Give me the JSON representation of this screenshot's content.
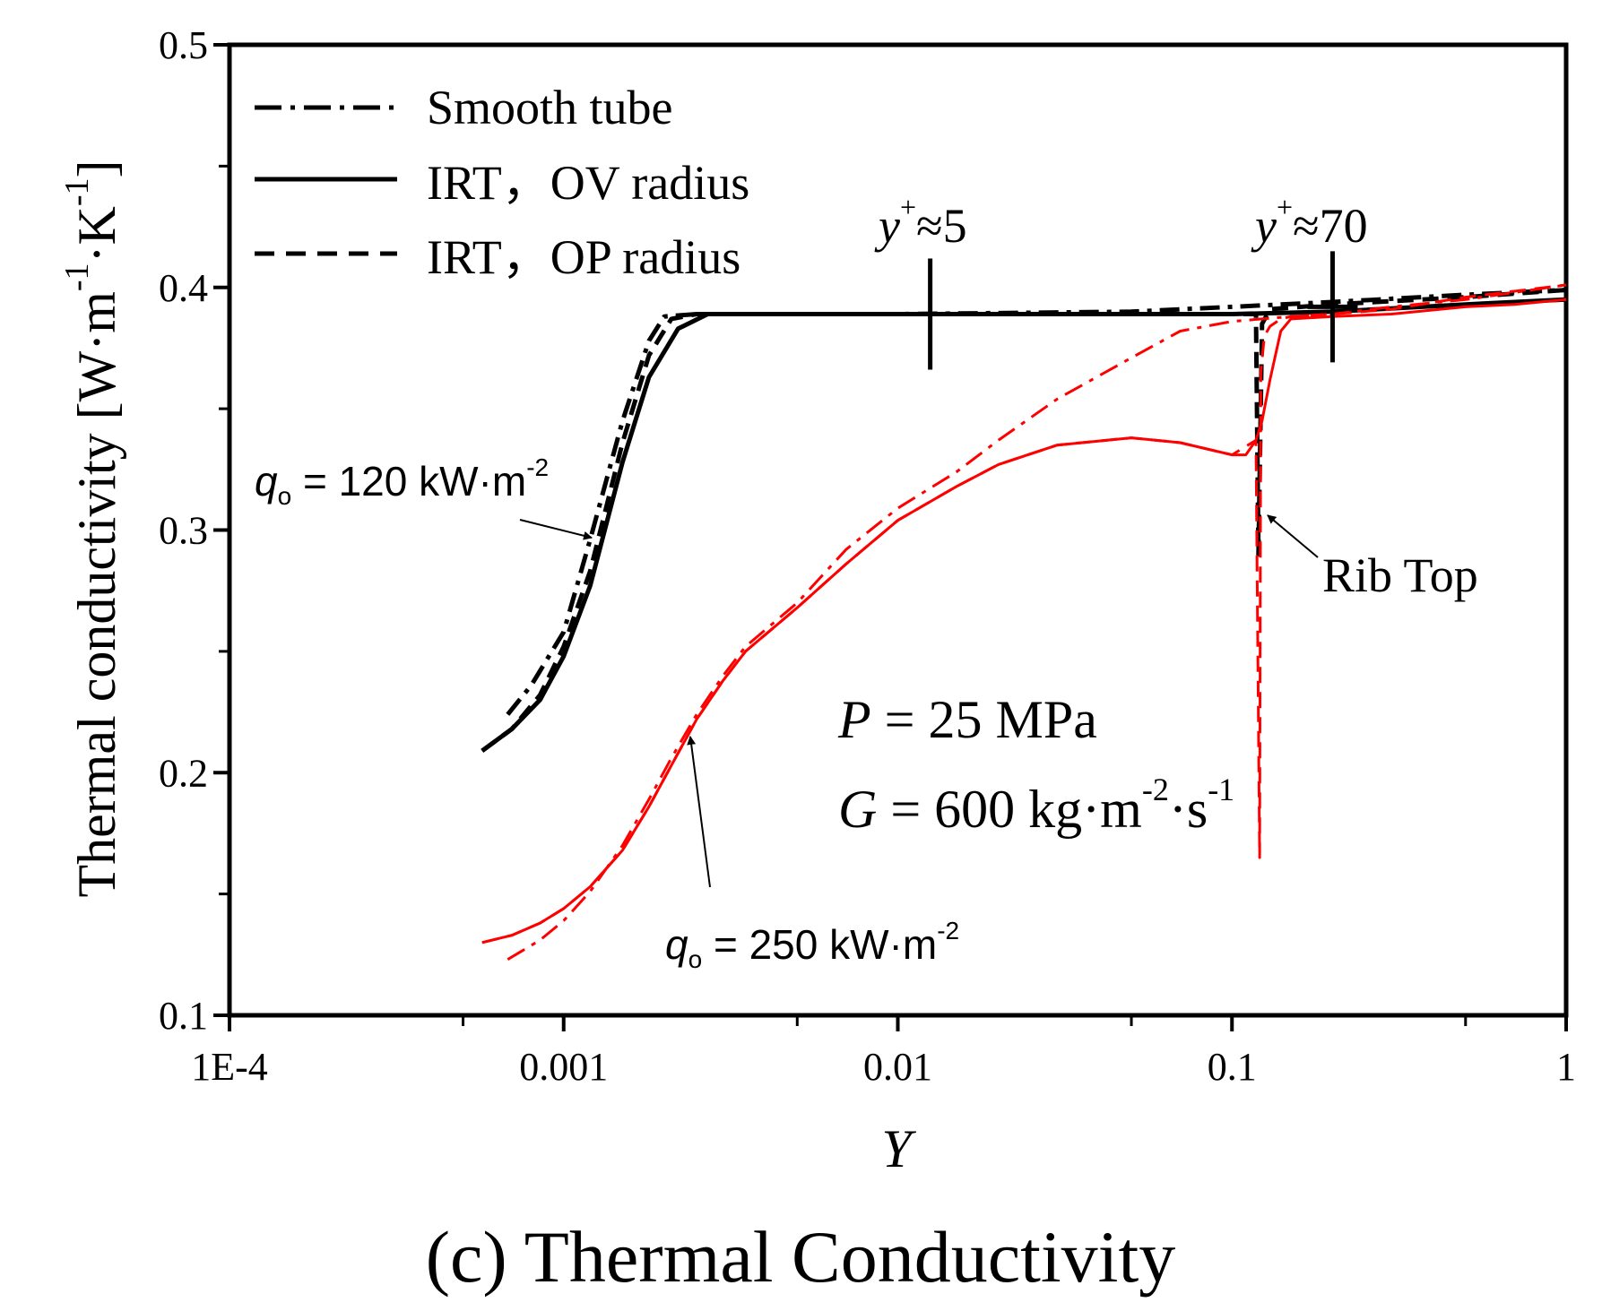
{
  "chart_data": {
    "type": "line",
    "title": "",
    "caption": {
      "label": "(c)",
      "text": "Thermal Conductivity"
    },
    "xlabel": "Y",
    "ylabel": {
      "main": "Thermal conductivity [W·m",
      "exp1": "-1",
      "mid": "·K",
      "exp2": "-1",
      "close": "]"
    },
    "xscale": "log",
    "xlim": [
      0.0001,
      1
    ],
    "ylim": [
      0.1,
      0.5
    ],
    "xticks": [
      {
        "value": 0.0001,
        "label": "1E-4"
      },
      {
        "value": 0.001,
        "label": "0.001"
      },
      {
        "value": 0.01,
        "label": "0.01"
      },
      {
        "value": 0.1,
        "label": "0.1"
      },
      {
        "value": 1,
        "label": "1"
      }
    ],
    "yticks": [
      {
        "value": 0.1,
        "label": "0.1"
      },
      {
        "value": 0.2,
        "label": "0.2"
      },
      {
        "value": 0.3,
        "label": "0.3"
      },
      {
        "value": 0.4,
        "label": "0.4"
      },
      {
        "value": 0.5,
        "label": "0.5"
      }
    ],
    "legend": {
      "position": "top-left",
      "entries": [
        {
          "label": "Smooth tube",
          "style": "dashdot"
        },
        {
          "label": "IRT，OV radius",
          "style": "solid"
        },
        {
          "label": "IRT，OP radius",
          "style": "dashed"
        }
      ]
    },
    "colors": {
      "q120": "#000000",
      "q250": "#ff0000"
    },
    "series": [
      {
        "group": "q120",
        "style": "solid",
        "x": [
          0.00057,
          0.0007,
          0.00085,
          0.001,
          0.0012,
          0.0015,
          0.0018,
          0.0022,
          0.0027,
          0.005,
          0.01,
          0.05,
          0.1,
          0.2,
          0.5,
          1
        ],
        "y": [
          0.209,
          0.218,
          0.23,
          0.248,
          0.277,
          0.328,
          0.363,
          0.383,
          0.389,
          0.389,
          0.389,
          0.389,
          0.389,
          0.39,
          0.393,
          0.395
        ]
      },
      {
        "group": "q120",
        "style": "dashdot",
        "x": [
          0.00068,
          0.0008,
          0.001,
          0.0012,
          0.0015,
          0.0018,
          0.002,
          0.0025,
          0.005,
          0.01,
          0.05,
          0.1,
          0.2,
          0.5,
          1
        ],
        "y": [
          0.224,
          0.236,
          0.258,
          0.296,
          0.345,
          0.378,
          0.388,
          0.389,
          0.389,
          0.389,
          0.39,
          0.392,
          0.394,
          0.397,
          0.399
        ]
      },
      {
        "group": "q120",
        "style": "dashed",
        "x": [
          0.00057,
          0.0007,
          0.00085,
          0.001,
          0.0012,
          0.0015,
          0.0018,
          0.0021,
          0.0025,
          0.005,
          0.01,
          0.05,
          0.1,
          0.118,
          0.12,
          0.123,
          0.13,
          0.2,
          0.5,
          1
        ],
        "y": [
          0.209,
          0.218,
          0.232,
          0.252,
          0.283,
          0.336,
          0.372,
          0.387,
          0.389,
          0.389,
          0.389,
          0.389,
          0.389,
          0.389,
          0.29,
          0.385,
          0.391,
          0.393,
          0.396,
          0.399
        ]
      },
      {
        "group": "q250",
        "style": "solid",
        "x": [
          0.00057,
          0.0007,
          0.00085,
          0.001,
          0.0012,
          0.0015,
          0.0018,
          0.0021,
          0.0025,
          0.003,
          0.0035,
          0.005,
          0.007,
          0.01,
          0.015,
          0.02,
          0.03,
          0.05,
          0.07,
          0.1,
          0.11,
          0.118,
          0.123,
          0.13,
          0.14,
          0.15,
          0.2,
          0.3,
          0.5,
          0.7,
          1
        ],
        "y": [
          0.13,
          0.133,
          0.138,
          0.144,
          0.153,
          0.168,
          0.186,
          0.203,
          0.222,
          0.238,
          0.25,
          0.268,
          0.286,
          0.304,
          0.318,
          0.327,
          0.335,
          0.338,
          0.336,
          0.331,
          0.331,
          0.337,
          0.345,
          0.362,
          0.382,
          0.387,
          0.388,
          0.389,
          0.392,
          0.393,
          0.395
        ]
      },
      {
        "group": "q250",
        "style": "dashdot",
        "x": [
          0.00068,
          0.00085,
          0.001,
          0.0012,
          0.0015,
          0.0018,
          0.0021,
          0.0025,
          0.003,
          0.0035,
          0.005,
          0.007,
          0.01,
          0.015,
          0.02,
          0.03,
          0.05,
          0.07,
          0.1,
          0.15,
          0.2,
          0.3,
          0.5,
          1
        ],
        "y": [
          0.123,
          0.131,
          0.139,
          0.151,
          0.17,
          0.189,
          0.206,
          0.224,
          0.24,
          0.252,
          0.27,
          0.292,
          0.309,
          0.324,
          0.337,
          0.354,
          0.371,
          0.382,
          0.386,
          0.388,
          0.389,
          0.392,
          0.395,
          0.401
        ]
      },
      {
        "group": "q250",
        "style": "dashed",
        "x": [
          0.00057,
          0.0007,
          0.00085,
          0.001,
          0.0012,
          0.0015,
          0.0018,
          0.0021,
          0.0025,
          0.003,
          0.0035,
          0.005,
          0.007,
          0.01,
          0.015,
          0.02,
          0.03,
          0.05,
          0.07,
          0.1,
          0.118,
          0.121,
          0.122,
          0.125,
          0.13,
          0.14,
          0.15,
          0.2,
          0.3,
          0.5,
          1
        ],
        "y": [
          0.13,
          0.133,
          0.138,
          0.144,
          0.153,
          0.168,
          0.186,
          0.203,
          0.222,
          0.238,
          0.25,
          0.268,
          0.286,
          0.304,
          0.318,
          0.327,
          0.335,
          0.338,
          0.336,
          0.331,
          0.337,
          0.165,
          0.365,
          0.38,
          0.384,
          0.387,
          0.388,
          0.389,
          0.391,
          0.396,
          0.401
        ]
      }
    ],
    "markers": [
      {
        "label_main": "y",
        "label_sup": "+",
        "label_rest": "≈5",
        "x": 0.0125,
        "y": 0.389
      },
      {
        "label_main": "y",
        "label_sup": "+",
        "label_rest": "≈70",
        "x": 0.2,
        "y": 0.392
      }
    ],
    "annotations": {
      "q120": {
        "label_main": "q",
        "label_sub": "o",
        "label_rest": " = 120 kW·m",
        "label_sup": "-2"
      },
      "q250": {
        "label_main": "q",
        "label_sub": "o",
        "label_rest": " = 250 kW·m",
        "label_sup": "-2"
      },
      "rib": "Rib Top",
      "pressure": {
        "var": "P",
        "rest": " = 25 MPa"
      },
      "flux": {
        "var": "G",
        "rest": " = 600 kg·m",
        "sup1": "-2",
        "mid": "·s",
        "sup2": "-1"
      }
    }
  }
}
